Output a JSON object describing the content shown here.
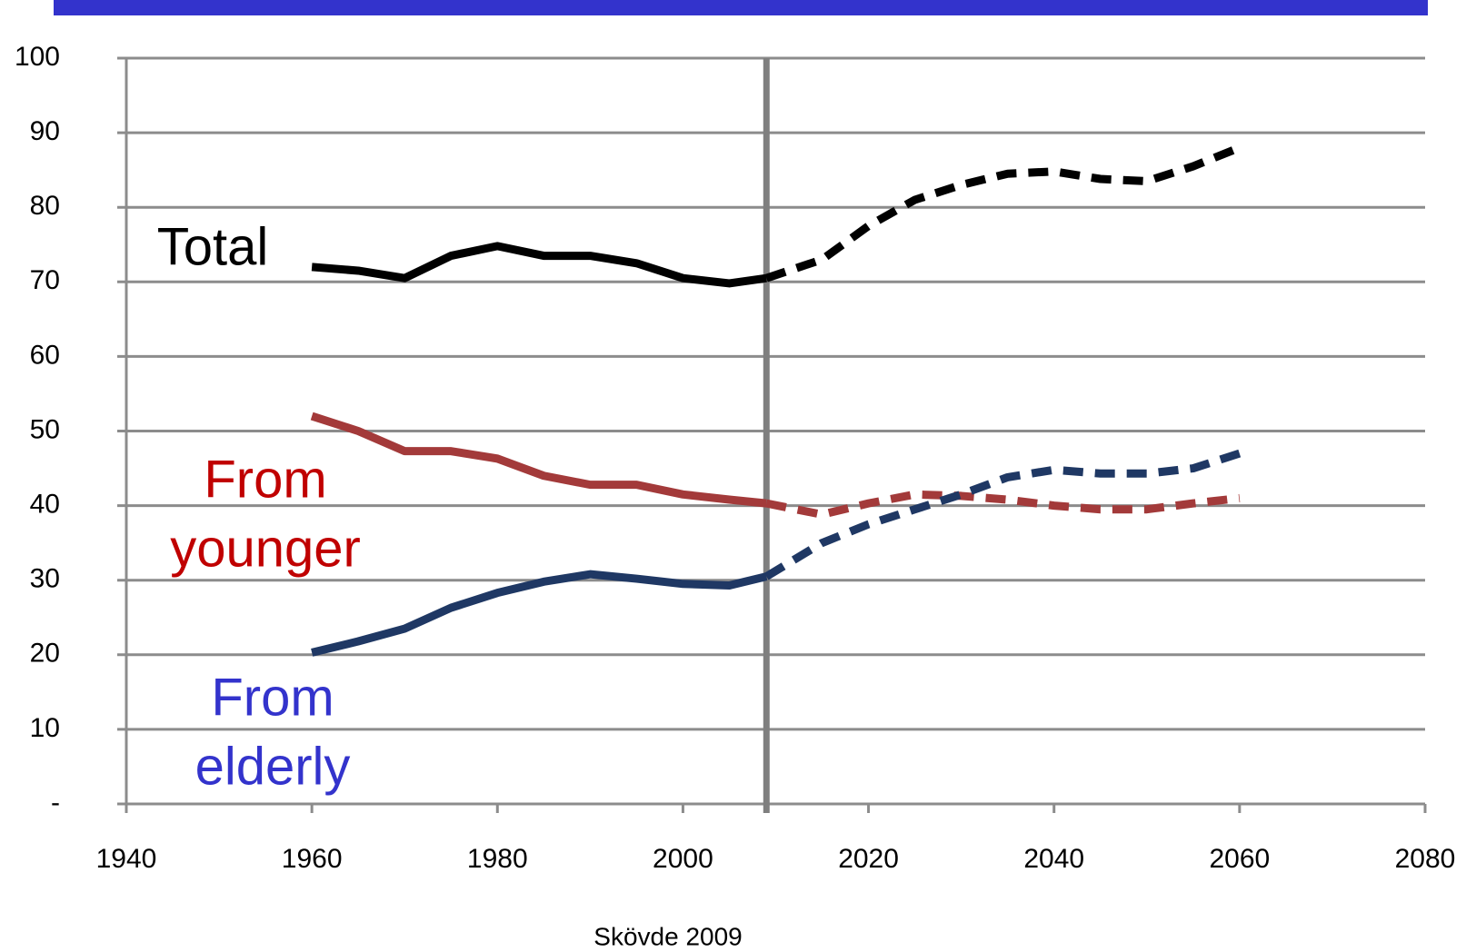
{
  "chart_data": {
    "type": "line",
    "x": [
      1960,
      1965,
      1970,
      1975,
      1980,
      1985,
      1990,
      1995,
      2000,
      2005,
      2009,
      2015,
      2020,
      2025,
      2030,
      2035,
      2040,
      2045,
      2050,
      2055,
      2060
    ],
    "series": [
      {
        "name": "Total",
        "color": "#000000",
        "values": [
          72,
          71.5,
          70.5,
          73.5,
          74.8,
          73.5,
          73.5,
          72.5,
          70.5,
          69.8,
          70.5,
          73,
          77.5,
          81,
          83,
          84.5,
          84.8,
          83.8,
          83.5,
          85.5,
          88
        ]
      },
      {
        "name": "From younger",
        "color": "#a33a3a",
        "values": [
          52,
          50,
          47.3,
          47.3,
          46.3,
          44,
          42.8,
          42.8,
          41.5,
          40.8,
          40.3,
          38.8,
          40.3,
          41.5,
          41.3,
          40.8,
          40,
          39.5,
          39.5,
          40.3,
          41
        ]
      },
      {
        "name": "From elderly",
        "color": "#1f3864",
        "values": [
          20.3,
          21.8,
          23.5,
          26.3,
          28.3,
          29.8,
          30.8,
          30.2,
          29.5,
          29.3,
          30.5,
          35,
          37.5,
          39.5,
          41.5,
          43.8,
          44.8,
          44.3,
          44.3,
          45,
          47
        ]
      }
    ],
    "projection_from": 2009,
    "annotations": [
      {
        "lines": [
          "Total"
        ],
        "color": "#000000"
      },
      {
        "lines": [
          "From",
          "younger"
        ],
        "color": "#c00000"
      },
      {
        "lines": [
          "From",
          "elderly"
        ],
        "color": "#3333cc"
      }
    ],
    "xlim": [
      1940,
      2080
    ],
    "xticks": [
      1940,
      1960,
      1980,
      2000,
      2020,
      2040,
      2060,
      2080
    ],
    "ylim": [
      0,
      100
    ],
    "yticks": [
      {
        "value": 0,
        "label": "-"
      },
      10,
      20,
      30,
      40,
      50,
      60,
      70,
      80,
      90,
      100
    ],
    "grid": true,
    "footer": "Skövde 2009"
  }
}
